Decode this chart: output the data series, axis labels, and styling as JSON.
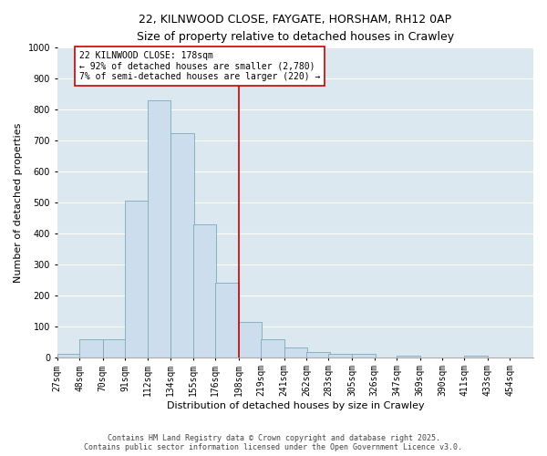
{
  "title_line1": "22, KILNWOOD CLOSE, FAYGATE, HORSHAM, RH12 0AP",
  "title_line2": "Size of property relative to detached houses in Crawley",
  "xlabel": "Distribution of detached houses by size in Crawley",
  "ylabel": "Number of detached properties",
  "bar_color": "#ccdded",
  "bar_edge_color": "#7aaabb",
  "background_color": "#dce8f0",
  "grid_color": "#ffffff",
  "vline_color": "#cc0000",
  "annotation_text": "22 KILNWOOD CLOSE: 178sqm\n← 92% of detached houses are smaller (2,780)\n7% of semi-detached houses are larger (220) →",
  "annotation_box_color": "#cc0000",
  "bin_starts": [
    27,
    48,
    70,
    91,
    112,
    134,
    155,
    176,
    198,
    219,
    241,
    262,
    283,
    305,
    326,
    347,
    369,
    390,
    411,
    433,
    454
  ],
  "bin_width": 22,
  "bar_heights": [
    10,
    58,
    58,
    505,
    830,
    725,
    430,
    240,
    115,
    58,
    30,
    15,
    10,
    10,
    0,
    5,
    0,
    0,
    5,
    0,
    0
  ],
  "vline_bin_index": 7,
  "ylim": [
    0,
    1000
  ],
  "yticks": [
    0,
    100,
    200,
    300,
    400,
    500,
    600,
    700,
    800,
    900,
    1000
  ],
  "tick_labels": [
    "27sqm",
    "48sqm",
    "70sqm",
    "91sqm",
    "112sqm",
    "134sqm",
    "155sqm",
    "176sqm",
    "198sqm",
    "219sqm",
    "241sqm",
    "262sqm",
    "283sqm",
    "305sqm",
    "326sqm",
    "347sqm",
    "369sqm",
    "390sqm",
    "411sqm",
    "433sqm",
    "454sqm"
  ],
  "footer_text": "Contains HM Land Registry data © Crown copyright and database right 2025.\nContains public sector information licensed under the Open Government Licence v3.0.",
  "title_fontsize": 9,
  "subtitle_fontsize": 8,
  "axis_label_fontsize": 8,
  "tick_fontsize": 7,
  "annotation_fontsize": 7,
  "footer_fontsize": 6
}
